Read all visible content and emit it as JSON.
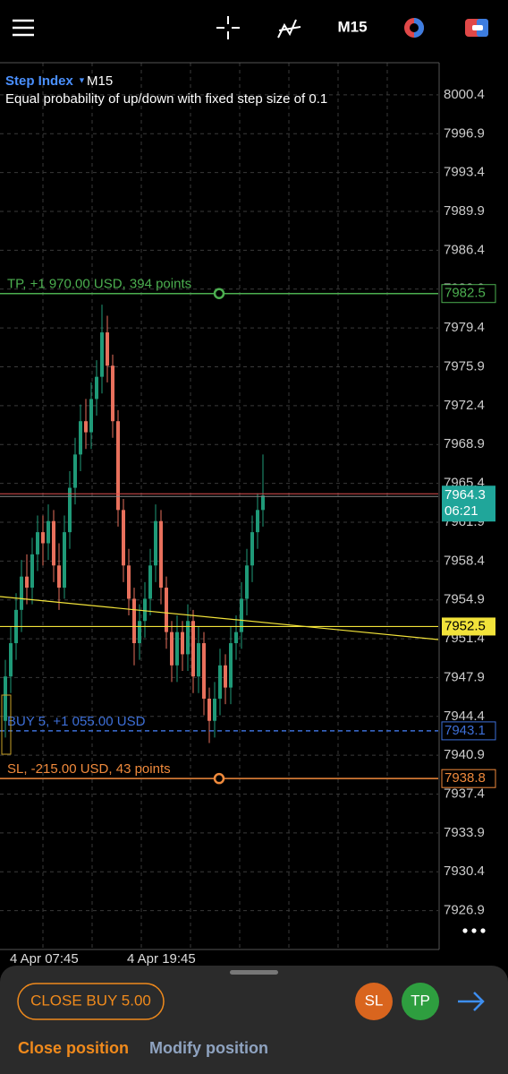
{
  "header": {
    "timeframe": "M15"
  },
  "chart_data": {
    "type": "candlestick",
    "symbol": "Step Index",
    "timeframe": "M15",
    "description": "Equal probability of up/down with fixed step size of 0.1",
    "ylim": [
      7923.4,
      8003.3
    ],
    "yticks": [
      8000.4,
      7996.9,
      7993.4,
      7989.9,
      7986.4,
      7982.9,
      7979.4,
      7975.9,
      7972.4,
      7968.9,
      7965.4,
      7961.9,
      7958.4,
      7954.9,
      7951.4,
      7947.9,
      7944.4,
      7940.9,
      7937.4,
      7933.9,
      7930.4,
      7926.9
    ],
    "grid": true,
    "up_color": "#1f9a78",
    "down_color": "#e8705c",
    "time_labels": [
      "4 Apr 07:45",
      "4 Apr 19:45"
    ],
    "candles": [
      [
        7944,
        7949.5,
        7942.5,
        7948
      ],
      [
        7948,
        7952.5,
        7946.5,
        7951
      ],
      [
        7951,
        7955.5,
        7949.5,
        7954
      ],
      [
        7954,
        7958.5,
        7952,
        7957
      ],
      [
        7957,
        7959,
        7954.5,
        7956
      ],
      [
        7956,
        7960.5,
        7954.5,
        7959
      ],
      [
        7959,
        7962.5,
        7957.5,
        7961
      ],
      [
        7961,
        7962.5,
        7958,
        7960
      ],
      [
        7960,
        7963.5,
        7958.5,
        7962
      ],
      [
        7962,
        7963,
        7956.5,
        7958
      ],
      [
        7958,
        7960,
        7954,
        7956
      ],
      [
        7956,
        7962.5,
        7955,
        7961
      ],
      [
        7961,
        7966.5,
        7959.5,
        7965
      ],
      [
        7965,
        7969.5,
        7963.5,
        7968
      ],
      [
        7968,
        7972.5,
        7966.5,
        7971
      ],
      [
        7971,
        7973,
        7968.5,
        7970
      ],
      [
        7970,
        7974.5,
        7968.5,
        7973
      ],
      [
        7973,
        7976.5,
        7971.5,
        7975
      ],
      [
        7975,
        7981.5,
        7973.5,
        7979
      ],
      [
        7979,
        7980.5,
        7974.5,
        7976
      ],
      [
        7976,
        7977,
        7969.5,
        7971
      ],
      [
        7971,
        7972,
        7961.5,
        7963
      ],
      [
        7963,
        7964,
        7956.5,
        7958
      ],
      [
        7958,
        7959.5,
        7953.5,
        7955
      ],
      [
        7955,
        7956,
        7949,
        7951
      ],
      [
        7951,
        7954.5,
        7949.5,
        7953
      ],
      [
        7953,
        7956.5,
        7951.5,
        7955
      ],
      [
        7955,
        7959.5,
        7953.5,
        7958
      ],
      [
        7958,
        7963.5,
        7956.5,
        7962
      ],
      [
        7962,
        7963,
        7954.5,
        7956
      ],
      [
        7956,
        7957,
        7950.5,
        7952
      ],
      [
        7952,
        7953,
        7947.5,
        7949
      ],
      [
        7949,
        7953.5,
        7947.5,
        7952
      ],
      [
        7952,
        7953,
        7948.5,
        7950
      ],
      [
        7950,
        7954.5,
        7948.5,
        7953
      ],
      [
        7953,
        7954,
        7946.5,
        7948
      ],
      [
        7948,
        7952.5,
        7946.5,
        7951
      ],
      [
        7951,
        7952,
        7944.5,
        7946
      ],
      [
        7946,
        7947,
        7942,
        7944
      ],
      [
        7944,
        7947.5,
        7942.5,
        7946
      ],
      [
        7946,
        7950.5,
        7944.5,
        7949
      ],
      [
        7949,
        7950,
        7945.5,
        7947
      ],
      [
        7947,
        7952.5,
        7945.5,
        7951
      ],
      [
        7951,
        7953.5,
        7949.5,
        7952
      ],
      [
        7952,
        7956.5,
        7950.5,
        7955
      ],
      [
        7955,
        7959.5,
        7953.5,
        7958
      ],
      [
        7958,
        7962.5,
        7956.5,
        7961
      ],
      [
        7961,
        7964.5,
        7959.5,
        7963
      ],
      [
        7963,
        7968,
        7961.5,
        7964.3
      ]
    ],
    "levels": [
      {
        "label": "TP, +1 970.00 USD, 394 points",
        "value": 7982.5,
        "color": "#4caf50"
      },
      {
        "label": "BUY 5,  +1 055.00 USD",
        "value": 7943.1,
        "color": "#3d6fd8"
      },
      {
        "label": "SL, -215.00 USD, 43 points",
        "value": 7938.8,
        "color": "#f08a3c"
      }
    ],
    "line_level": {
      "value": 7952.5,
      "color": "#f2e33a"
    },
    "bid": {
      "value": 7964.3,
      "countdown": "06:21",
      "color": "#20a69a"
    }
  },
  "panel": {
    "close_button": "CLOSE BUY 5.00",
    "sl": "SL",
    "tp": "TP",
    "tabs": [
      "Close position",
      "Modify position"
    ]
  }
}
